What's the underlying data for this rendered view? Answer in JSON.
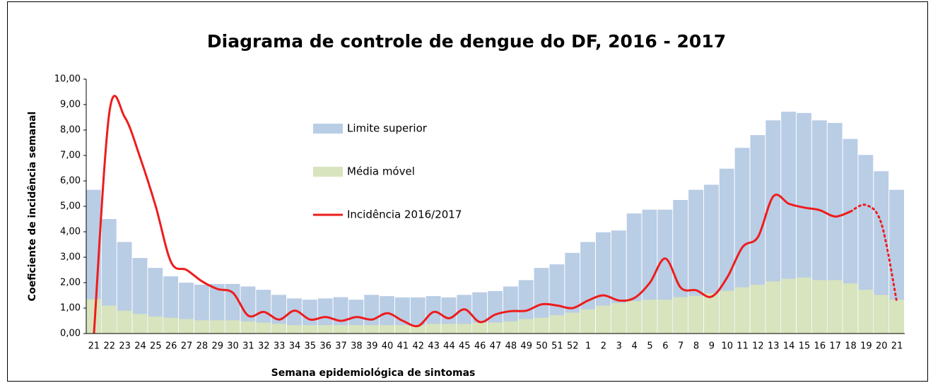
{
  "chart_data": {
    "type": "bar-line",
    "title": "Diagrama de controle de dengue do DF, 2016 - 2017",
    "x_label": "Semana epidemiológica  de sintomas",
    "y_label": "Coeficiente de incidência semanal",
    "categories": [
      "21",
      "22",
      "23",
      "24",
      "25",
      "26",
      "27",
      "28",
      "29",
      "30",
      "31",
      "32",
      "33",
      "34",
      "35",
      "36",
      "37",
      "38",
      "39",
      "40",
      "41",
      "42",
      "43",
      "44",
      "45",
      "46",
      "47",
      "48",
      "49",
      "50",
      "51",
      "52",
      "1",
      "2",
      "3",
      "4",
      "5",
      "6",
      "7",
      "8",
      "9",
      "10",
      "11",
      "12",
      "13",
      "14",
      "15",
      "16",
      "17",
      "18",
      "19",
      "20",
      "21"
    ],
    "ylim": [
      0,
      10
    ],
    "yticks": [
      {
        "value": 0,
        "label": "0,00"
      },
      {
        "value": 1,
        "label": "1,00"
      },
      {
        "value": 2,
        "label": "2,00"
      },
      {
        "value": 3,
        "label": "3,00"
      },
      {
        "value": 4,
        "label": "4,00"
      },
      {
        "value": 5,
        "label": "5,00"
      },
      {
        "value": 6,
        "label": "6,00"
      },
      {
        "value": 7,
        "label": "7,00"
      },
      {
        "value": 8,
        "label": "8,00"
      },
      {
        "value": 9,
        "label": "9,00"
      },
      {
        "value": 10,
        "label": "10,00"
      }
    ],
    "series": [
      {
        "name": "Limite superior",
        "kind": "bar",
        "color": "#b9cde5",
        "values": [
          5.65,
          4.5,
          3.6,
          2.97,
          2.58,
          2.25,
          2.0,
          1.92,
          1.95,
          1.95,
          1.85,
          1.72,
          1.52,
          1.38,
          1.33,
          1.38,
          1.43,
          1.33,
          1.52,
          1.47,
          1.42,
          1.42,
          1.47,
          1.42,
          1.52,
          1.62,
          1.67,
          1.85,
          2.1,
          2.58,
          2.72,
          3.17,
          3.6,
          3.98,
          4.05,
          4.72,
          4.87,
          4.87,
          5.25,
          5.65,
          5.85,
          6.48,
          7.3,
          7.8,
          8.38,
          8.72,
          8.67,
          8.38,
          8.28,
          7.65,
          7.02,
          6.38,
          5.65
        ]
      },
      {
        "name": "Média móvel",
        "kind": "bar",
        "color": "#d7e4bd",
        "values": [
          1.35,
          1.1,
          0.9,
          0.77,
          0.67,
          0.62,
          0.57,
          0.52,
          0.52,
          0.52,
          0.48,
          0.43,
          0.38,
          0.33,
          0.33,
          0.33,
          0.33,
          0.33,
          0.33,
          0.33,
          0.33,
          0.33,
          0.38,
          0.38,
          0.38,
          0.43,
          0.43,
          0.48,
          0.57,
          0.62,
          0.72,
          0.82,
          0.95,
          1.1,
          1.2,
          1.28,
          1.33,
          1.33,
          1.43,
          1.48,
          1.58,
          1.68,
          1.82,
          1.92,
          2.05,
          2.15,
          2.2,
          2.1,
          2.1,
          1.97,
          1.72,
          1.52,
          1.33
        ]
      },
      {
        "name": "Incidência 2016/2017",
        "kind": "line",
        "color": "#ee1c1c",
        "values": [
          0,
          8.7,
          8.5,
          6.9,
          5.0,
          2.8,
          2.5,
          2.05,
          1.75,
          1.6,
          0.7,
          0.85,
          0.55,
          0.9,
          0.55,
          0.65,
          0.5,
          0.65,
          0.55,
          0.8,
          0.5,
          0.3,
          0.85,
          0.6,
          0.95,
          0.45,
          0.75,
          0.88,
          0.9,
          1.15,
          1.1,
          1.0,
          1.3,
          1.5,
          1.3,
          1.4,
          2.0,
          2.95,
          1.8,
          1.7,
          1.45,
          2.2,
          3.4,
          3.8,
          5.4,
          5.1,
          4.95,
          4.85,
          4.6,
          4.8,
          null,
          null,
          null
        ],
        "dotted_values": [
          null,
          null,
          null,
          null,
          null,
          null,
          null,
          null,
          null,
          null,
          null,
          null,
          null,
          null,
          null,
          null,
          null,
          null,
          null,
          null,
          null,
          null,
          null,
          null,
          null,
          null,
          null,
          null,
          null,
          null,
          null,
          null,
          null,
          null,
          null,
          null,
          null,
          null,
          null,
          null,
          null,
          null,
          null,
          null,
          null,
          null,
          null,
          null,
          null,
          4.8,
          5.05,
          4.3,
          1.2
        ]
      }
    ]
  }
}
